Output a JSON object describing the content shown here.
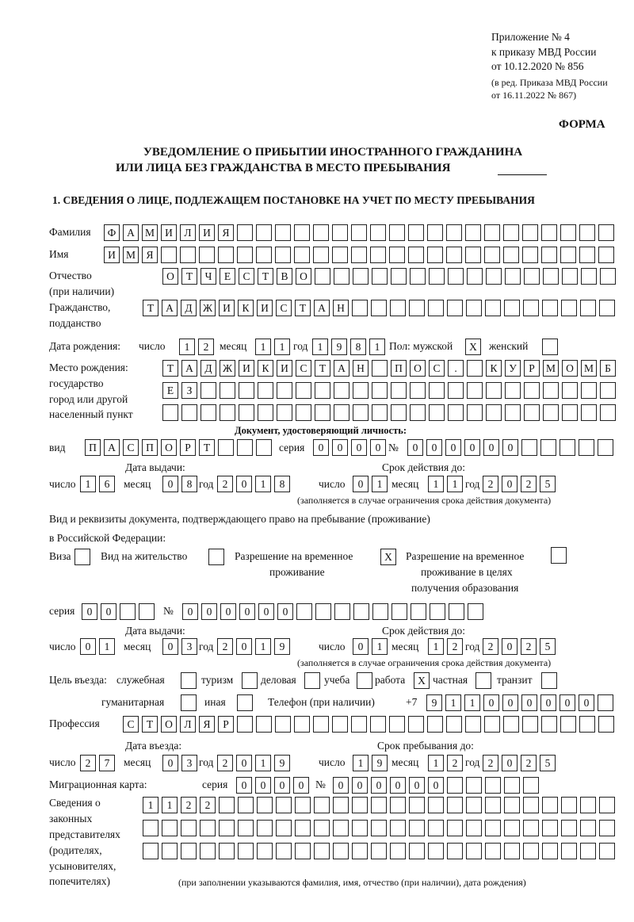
{
  "header": {
    "appendix": [
      "Приложение № 4",
      "к приказу МВД России",
      "от 10.12.2020 № 856"
    ],
    "amendment": [
      "(в ред. Приказа МВД России",
      "от 16.11.2022 № 867)"
    ]
  },
  "form_label": "ФОРМА",
  "title": [
    "УВЕДОМЛЕНИЕ О ПРИБЫТИИ ИНОСТРАННОГО ГРАЖДАНИНА",
    "ИЛИ ЛИЦА БЕЗ ГРАЖДАНСТВА В МЕСТО ПРЕБЫВАНИЯ"
  ],
  "section1": "1. СВЕДЕНИЯ О ЛИЦЕ, ПОДЛЕЖАЩЕМ ПОСТАНОВКЕ НА УЧЕТ ПО МЕСТУ ПРЕБЫВАНИЯ",
  "date_labels": {
    "day": "число",
    "month": "месяц",
    "year": "год"
  },
  "person": {
    "surname": {
      "label": "Фамилия",
      "cells": [
        "Ф",
        "А",
        "М",
        "И",
        "Л",
        "И",
        "Я",
        "",
        "",
        "",
        "",
        "",
        "",
        "",
        "",
        "",
        "",
        "",
        "",
        "",
        "",
        "",
        "",
        "",
        "",
        "",
        ""
      ]
    },
    "name": {
      "label": "Имя",
      "cells": [
        "И",
        "М",
        "Я",
        "",
        "",
        "",
        "",
        "",
        "",
        "",
        "",
        "",
        "",
        "",
        "",
        "",
        "",
        "",
        "",
        "",
        "",
        "",
        "",
        "",
        "",
        "",
        ""
      ]
    },
    "patronymic": {
      "label": [
        "Отчество",
        "(при наличии)"
      ],
      "cells": [
        "О",
        "Т",
        "Ч",
        "Е",
        "С",
        "Т",
        "В",
        "О",
        "",
        "",
        "",
        "",
        "",
        "",
        "",
        "",
        "",
        "",
        "",
        "",
        "",
        "",
        "",
        ""
      ]
    },
    "citizenship": {
      "label": [
        "Гражданство,",
        "подданство"
      ],
      "cells": [
        "Т",
        "А",
        "Д",
        "Ж",
        "И",
        "К",
        "И",
        "С",
        "Т",
        "А",
        "Н",
        "",
        "",
        "",
        "",
        "",
        "",
        "",
        "",
        "",
        "",
        "",
        "",
        "",
        ""
      ]
    },
    "birth_date": {
      "label": "Дата рождения:",
      "day": [
        "1",
        "2"
      ],
      "month": [
        "1",
        "1"
      ],
      "year": [
        "1",
        "9",
        "8",
        "1"
      ]
    },
    "sex": {
      "label": "Пол: мужской",
      "male": [
        "X"
      ],
      "female_label": "женский",
      "female": [
        ""
      ]
    },
    "birthplace": {
      "label": [
        "Место рождения:",
        "государство",
        "город или другой",
        "населенный пункт"
      ],
      "rows": [
        [
          "Т",
          "А",
          "Д",
          "Ж",
          "И",
          "К",
          "И",
          "С",
          "Т",
          "А",
          "Н",
          "",
          "П",
          "О",
          "С",
          ".",
          "",
          "К",
          "У",
          "Р",
          "М",
          "О",
          "М",
          "Б"
        ],
        [
          "Е",
          "З",
          "",
          "",
          "",
          "",
          "",
          "",
          "",
          "",
          "",
          "",
          "",
          "",
          "",
          "",
          "",
          "",
          "",
          "",
          "",
          "",
          "",
          ""
        ],
        [
          "",
          "",
          "",
          "",
          "",
          "",
          "",
          "",
          "",
          "",
          "",
          "",
          "",
          "",
          "",
          "",
          "",
          "",
          "",
          "",
          "",
          "",
          "",
          ""
        ]
      ]
    }
  },
  "identity_doc": {
    "heading": "Документ, удостоверяющий личность:",
    "type_label": "вид",
    "type": [
      "П",
      "А",
      "С",
      "П",
      "О",
      "Р",
      "Т",
      "",
      "",
      ""
    ],
    "series_label": "серия",
    "series": [
      "0",
      "0",
      "0",
      "0"
    ],
    "number_label": "№",
    "number": [
      "0",
      "0",
      "0",
      "0",
      "0",
      "0",
      "",
      "",
      "",
      "",
      ""
    ],
    "issue_label": "Дата выдачи:",
    "issue": {
      "day": [
        "1",
        "6"
      ],
      "month": [
        "0",
        "8"
      ],
      "year": [
        "2",
        "0",
        "1",
        "8"
      ]
    },
    "valid_label": "Срок действия до:",
    "valid": {
      "day": [
        "0",
        "1"
      ],
      "month": [
        "1",
        "1"
      ],
      "year": [
        "2",
        "0",
        "2",
        "5"
      ]
    },
    "note": "(заполняется в случае ограничения срока действия документа)"
  },
  "residence_doc": {
    "heading": [
      "Вид и реквизиты документа, подтверждающего право на пребывание (проживание)",
      "в Российской Федерации:"
    ],
    "options": [
      {
        "label": [
          "Виза"
        ],
        "cells": [
          ""
        ]
      },
      {
        "label": [
          "Вид на жительство"
        ],
        "cells": [
          ""
        ]
      },
      {
        "label": [
          "Разрешение на временное",
          "проживание"
        ],
        "cells": [
          "X"
        ]
      },
      {
        "label": [
          "Разрешение на временное",
          "проживание в целях",
          "получения образования"
        ],
        "cells": [
          ""
        ]
      }
    ],
    "series_label": "серия",
    "series": [
      "0",
      "0",
      "",
      ""
    ],
    "number_label": "№",
    "number": [
      "0",
      "0",
      "0",
      "0",
      "0",
      "0",
      "",
      "",
      "",
      "",
      "",
      "",
      "",
      "",
      "",
      ""
    ],
    "issue_label": "Дата выдачи:",
    "issue": {
      "day": [
        "0",
        "1"
      ],
      "month": [
        "0",
        "3"
      ],
      "year": [
        "2",
        "0",
        "1",
        "9"
      ]
    },
    "valid_label": "Срок действия до:",
    "valid": {
      "day": [
        "0",
        "1"
      ],
      "month": [
        "1",
        "2"
      ],
      "year": [
        "2",
        "0",
        "2",
        "5"
      ]
    },
    "note": "(заполняется в случае ограничения срока действия документа)"
  },
  "purpose": {
    "label": "Цель въезда:",
    "options": [
      {
        "label": "служебная",
        "cells": [
          ""
        ]
      },
      {
        "label": "туризм",
        "cells": [
          ""
        ]
      },
      {
        "label": "деловая",
        "cells": [
          ""
        ]
      },
      {
        "label": "учеба",
        "cells": [
          ""
        ]
      },
      {
        "label": "работа",
        "cells": [
          "X"
        ]
      },
      {
        "label": "частная",
        "cells": [
          ""
        ]
      },
      {
        "label": "транзит",
        "cells": [
          ""
        ]
      },
      {
        "label": "гуманитарная",
        "cells": [
          ""
        ]
      },
      {
        "label": "иная",
        "cells": [
          ""
        ]
      }
    ]
  },
  "phone": {
    "label": "Телефон (при наличии)",
    "prefix": "+7",
    "cells": [
      "9",
      "1",
      "1",
      "0",
      "0",
      "0",
      "0",
      "0",
      "0",
      ""
    ]
  },
  "profession": {
    "label": "Профессия",
    "cells": [
      "С",
      "Т",
      "О",
      "Л",
      "Я",
      "Р",
      "",
      "",
      "",
      "",
      "",
      "",
      "",
      "",
      "",
      "",
      "",
      "",
      "",
      "",
      "",
      "",
      "",
      "",
      "",
      ""
    ]
  },
  "entry": {
    "entry_label": "Дата въезда:",
    "entry": {
      "day": [
        "2",
        "7"
      ],
      "month": [
        "0",
        "3"
      ],
      "year": [
        "2",
        "0",
        "1",
        "9"
      ]
    },
    "stay_label": "Срок пребывания до:",
    "stay": {
      "day": [
        "1",
        "9"
      ],
      "month": [
        "1",
        "2"
      ],
      "year": [
        "2",
        "0",
        "2",
        "5"
      ]
    }
  },
  "migration_card": {
    "label": "Миграционная карта:",
    "series_label": "серия",
    "series": [
      "0",
      "0",
      "0",
      "0"
    ],
    "number_label": "№",
    "number": [
      "0",
      "0",
      "0",
      "0",
      "0",
      "0",
      "",
      "",
      "",
      "",
      ""
    ]
  },
  "representatives": {
    "label": [
      "Сведения о",
      "законных",
      "представителях",
      "(родителях,",
      "усыновителях,",
      "попечителях)"
    ],
    "rows": [
      [
        "1",
        "1",
        "2",
        "2",
        "",
        "",
        "",
        "",
        "",
        "",
        "",
        "",
        "",
        "",
        "",
        "",
        "",
        "",
        "",
        "",
        "",
        "",
        "",
        "",
        ""
      ],
      [
        "",
        "",
        "",
        "",
        "",
        "",
        "",
        "",
        "",
        "",
        "",
        "",
        "",
        "",
        "",
        "",
        "",
        "",
        "",
        "",
        "",
        "",
        "",
        "",
        ""
      ],
      [
        "",
        "",
        "",
        "",
        "",
        "",
        "",
        "",
        "",
        "",
        "",
        "",
        "",
        "",
        "",
        "",
        "",
        "",
        "",
        "",
        "",
        "",
        "",
        "",
        ""
      ]
    ],
    "note": "(при заполнении указываются фамилия, имя, отчество (при наличии), дата рождения)"
  }
}
